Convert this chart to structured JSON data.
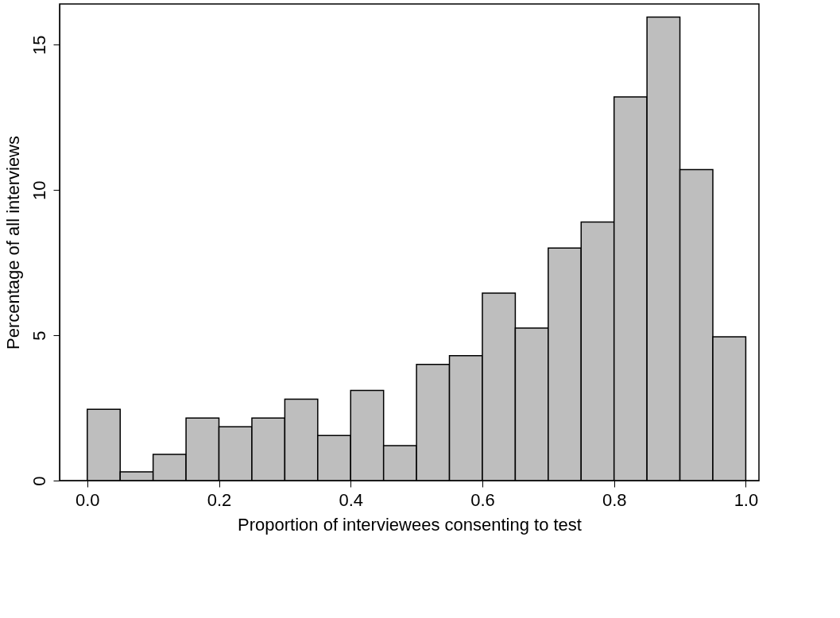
{
  "chart_data": {
    "type": "histogram",
    "xlabel": "Proportion of interviewees consenting to test",
    "ylabel": "Percentage of all interviews",
    "bins": [
      0.0,
      0.05,
      0.1,
      0.15,
      0.2,
      0.25,
      0.3,
      0.35,
      0.4,
      0.45,
      0.5,
      0.55,
      0.6,
      0.65,
      0.7,
      0.75,
      0.8,
      0.85,
      0.9,
      0.95,
      1.0
    ],
    "values": [
      2.45,
      0.3,
      0.9,
      2.15,
      1.85,
      2.15,
      2.8,
      1.55,
      3.1,
      1.2,
      4.0,
      4.3,
      6.45,
      5.25,
      8.0,
      8.9,
      13.2,
      15.95,
      10.7,
      4.95
    ],
    "color": "#bebebe",
    "xlim": [
      -0.042,
      1.02
    ],
    "ylim": [
      0,
      16.4
    ],
    "xticks": [
      {
        "value": 0.0,
        "label": "0.0"
      },
      0.2,
      0.4,
      0.6,
      0.8,
      {
        "value": 1.0,
        "label": "1.0"
      }
    ],
    "yticks": [
      0,
      5,
      10,
      15
    ],
    "grid": false
  }
}
